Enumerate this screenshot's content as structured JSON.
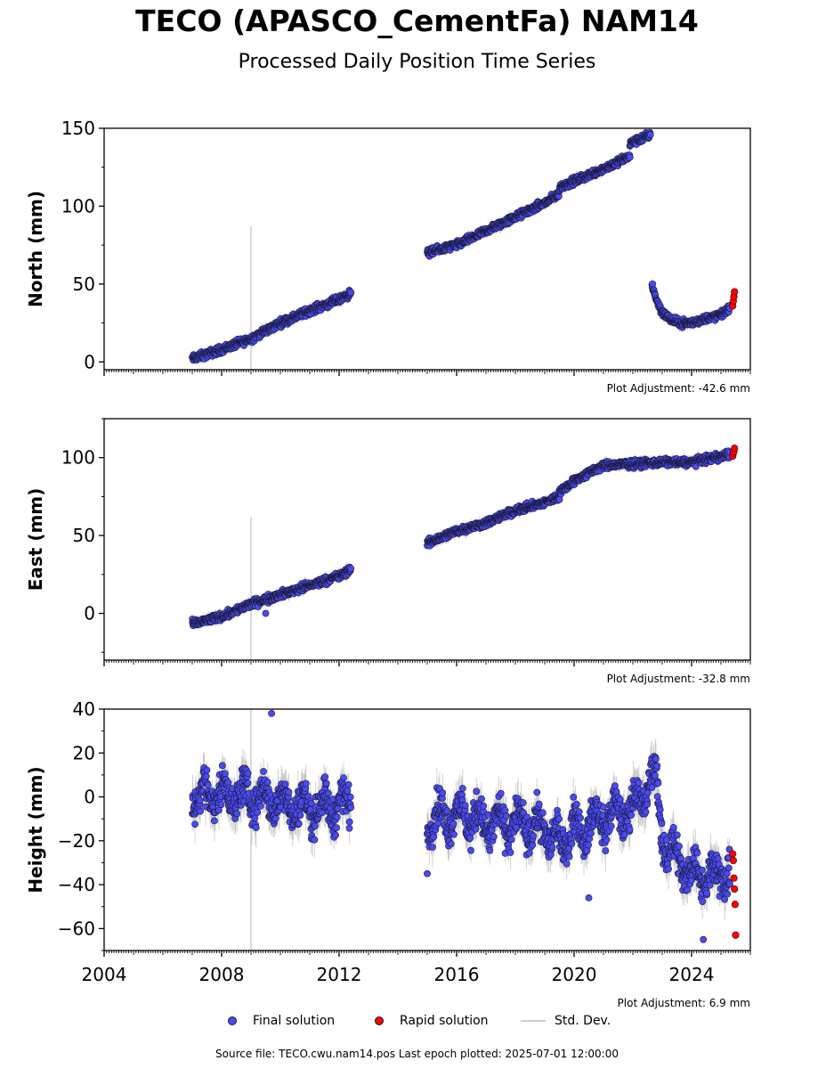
{
  "title": "TECO (APASCO_CementFa) NAM14",
  "subtitle": "Processed Daily Position Time Series",
  "source_line": "Source file: TECO.cwu.nam14.pos  Last epoch plotted: 2025-07-01 12:00:00",
  "legend": [
    {
      "label": "Final solution",
      "color": "#4a4af0",
      "kind": "dot"
    },
    {
      "label": "Rapid solution",
      "color": "#ff0000",
      "kind": "dot"
    },
    {
      "label": "Std. Dev.",
      "color": "#cfcfcf",
      "kind": "line"
    }
  ],
  "chart_data": [
    {
      "type": "scatter",
      "ylabel": "North (mm)",
      "adjustment": "Plot Adjustment: -42.6 mm",
      "xlim": [
        2004,
        2026
      ],
      "ylim": [
        -5,
        150
      ],
      "yticks": [
        0,
        50,
        100,
        150
      ],
      "xticks": [
        2004,
        2008,
        2012,
        2016,
        2020,
        2024
      ],
      "segments": [
        {
          "x": [
            2007.0,
            2008.0,
            2009.0,
            2010.0,
            2011.0,
            2012.0,
            2012.4
          ],
          "y": [
            2,
            8,
            15,
            25,
            33,
            40,
            44
          ]
        },
        {
          "x": [
            2015.0,
            2016.0,
            2017.0,
            2018.0,
            2019.0,
            2019.5
          ],
          "y": [
            70,
            75,
            84,
            93,
            102,
            108
          ]
        },
        {
          "x": [
            2019.5,
            2020.0,
            2021.0,
            2021.9
          ],
          "y": [
            112,
            116,
            124,
            132
          ]
        },
        {
          "x": [
            2021.9,
            2022.6
          ],
          "y": [
            140,
            146
          ]
        },
        {
          "x": [
            2022.65,
            2022.8,
            2023.0,
            2023.3,
            2023.6,
            2024.0,
            2024.5,
            2025.0,
            2025.3
          ],
          "y": [
            50,
            40,
            32,
            27,
            25,
            25,
            28,
            30,
            35
          ]
        }
      ],
      "rapid": {
        "x": [
          2025.4,
          2025.42,
          2025.44,
          2025.46
        ],
        "y": [
          36,
          39,
          42,
          45
        ]
      },
      "stddev_spike": {
        "x": 2009.0,
        "ymin": -5,
        "ymax": 87
      }
    },
    {
      "type": "scatter",
      "ylabel": "East (mm)",
      "adjustment": "Plot Adjustment: -32.8 mm",
      "xlim": [
        2004,
        2026
      ],
      "ylim": [
        -30,
        125
      ],
      "yticks": [
        0,
        50,
        100
      ],
      "xticks": [
        2004,
        2008,
        2012,
        2016,
        2020,
        2024
      ],
      "segments": [
        {
          "x": [
            2007.0,
            2008.0,
            2009.0,
            2010.0,
            2011.0,
            2012.0,
            2012.4
          ],
          "y": [
            -7,
            -2,
            6,
            12,
            18,
            24,
            28
          ]
        },
        {
          "x": [
            2015.0,
            2016.0,
            2017.0,
            2018.0,
            2019.0,
            2019.5
          ],
          "y": [
            45,
            53,
            58,
            66,
            71,
            75
          ]
        },
        {
          "x": [
            2019.5,
            2020.0,
            2021.0,
            2022.0,
            2023.0,
            2024.0,
            2025.3
          ],
          "y": [
            78,
            85,
            95,
            96,
            97,
            97,
            102
          ]
        }
      ],
      "rapid": {
        "x": [
          2025.4,
          2025.42,
          2025.44,
          2025.46
        ],
        "y": [
          101,
          103,
          104,
          106
        ]
      },
      "outliers": [
        {
          "x": 2009.5,
          "y": 0
        }
      ],
      "stddev_spike": {
        "x": 2009.0,
        "ymin": -30,
        "ymax": 62
      }
    },
    {
      "type": "scatter",
      "ylabel": "Height (mm)",
      "adjustment": "Plot Adjustment: 6.9 mm",
      "xlim": [
        2004,
        2026
      ],
      "ylim": [
        -70,
        40
      ],
      "yticks": [
        -60,
        -40,
        -20,
        0,
        20,
        40
      ],
      "xticks": [
        2004,
        2008,
        2012,
        2016,
        2020,
        2024
      ],
      "xticklabels": [
        "2004",
        "2008",
        "2012",
        "2016",
        "2020",
        "2024"
      ],
      "segments": [
        {
          "x": [
            2007.0,
            2008.0,
            2009.0,
            2010.0,
            2011.0,
            2012.4
          ],
          "y": [
            0,
            2,
            0,
            -2,
            -5,
            -3
          ]
        },
        {
          "x": [
            2015.0,
            2016.0,
            2017.0,
            2018.0,
            2019.0,
            2019.5
          ],
          "y": [
            -10,
            -8,
            -12,
            -12,
            -15,
            -18
          ]
        },
        {
          "x": [
            2019.5,
            2020.0,
            2021.0,
            2022.0,
            2022.8,
            2023.0,
            2024.0,
            2025.3
          ],
          "y": [
            -20,
            -15,
            -10,
            -5,
            10,
            -20,
            -35,
            -35
          ]
        }
      ],
      "rapid": {
        "x": [
          2025.4,
          2025.42,
          2025.44,
          2025.46,
          2025.48,
          2025.5
        ],
        "y": [
          -26,
          -29,
          -37,
          -42,
          -49,
          -63
        ]
      },
      "outliers": [
        {
          "x": 2009.7,
          "y": 38
        },
        {
          "x": 2015.0,
          "y": -35
        },
        {
          "x": 2020.5,
          "y": -46
        },
        {
          "x": 2024.4,
          "y": -65
        }
      ],
      "stddev_spike": {
        "x": 2009.0,
        "ymin": -70,
        "ymax": 40
      }
    }
  ]
}
